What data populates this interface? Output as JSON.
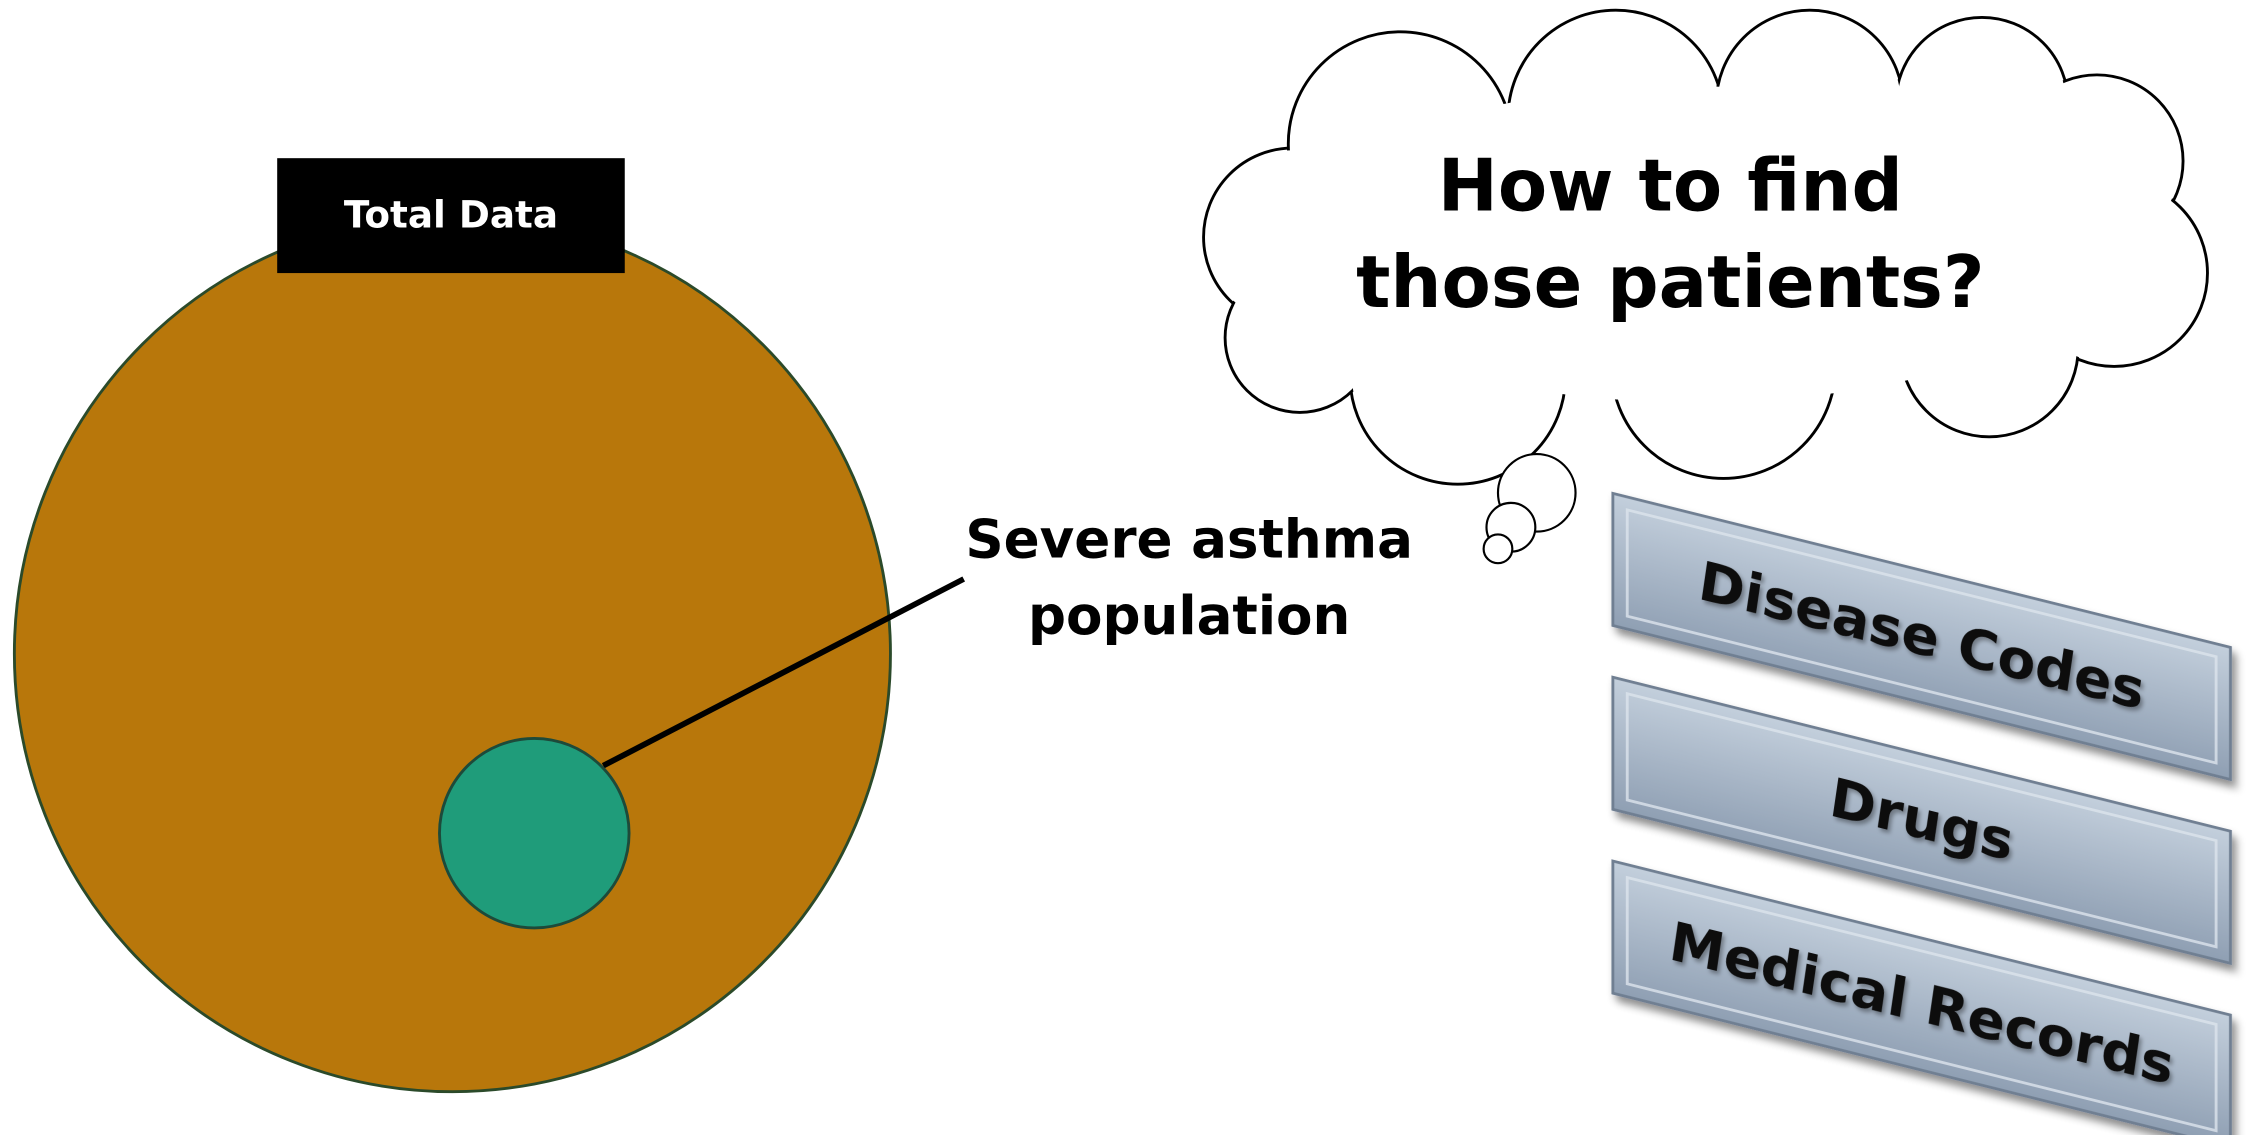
{
  "total_label": "Total Data",
  "subset_label": [
    "Severe asthma",
    "population"
  ],
  "question": [
    "How to find",
    "those patients?"
  ],
  "methods": [
    "Disease Codes",
    "Drugs",
    "Medical Records"
  ]
}
